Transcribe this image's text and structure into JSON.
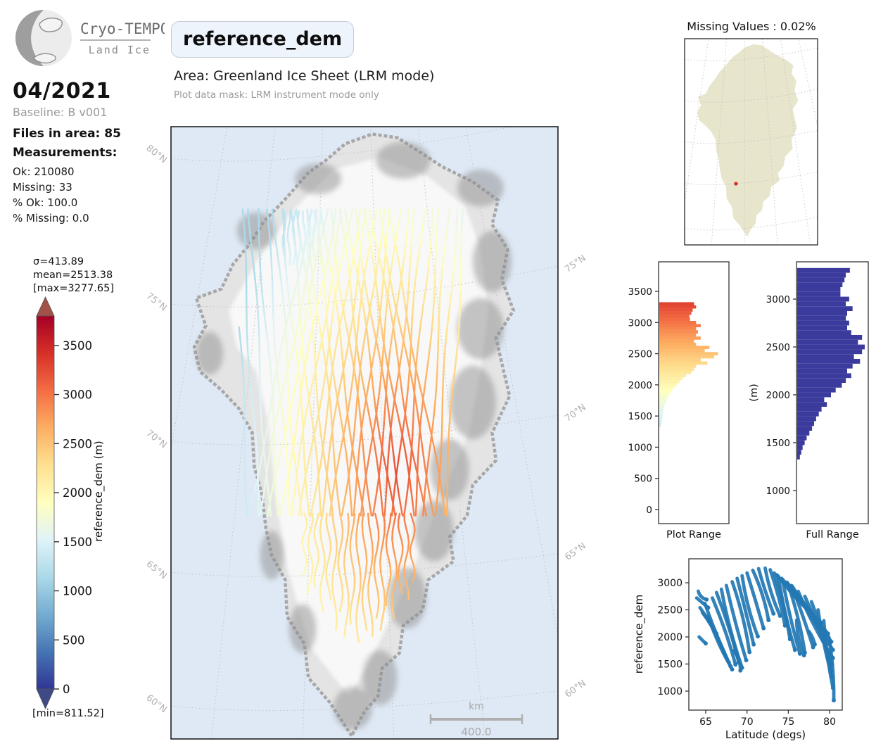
{
  "branding": {
    "logo_title": "Cryo-TEMPO",
    "logo_subtitle": "Land Ice"
  },
  "sidebar": {
    "date": "04/2021",
    "baseline": "Baseline: B v001",
    "files": "Files in area: 85",
    "measurements_label": "Measurements:",
    "stats": [
      "Ok: 210080",
      "Missing: 33",
      "% Ok: 100.0",
      "% Missing: 0.0"
    ]
  },
  "header": {
    "variable": "reference_dem",
    "area": "Area: Greenland Ice Sheet (LRM mode)",
    "mask": "Plot data mask: LRM instrument mode only"
  },
  "colorbar": {
    "sigma": "σ=413.89",
    "mean": "mean=2513.38",
    "max": "[max=3277.65]",
    "min": "[min=811.52]",
    "label": "reference_dem (m)",
    "ticks": [
      3500,
      3000,
      2500,
      2000,
      1500,
      1000,
      500,
      0
    ],
    "vmax": 3800,
    "over_color": "#a3524a",
    "under_color": "#3e4a85",
    "stops": [
      "#313695",
      "#4575b4",
      "#74add1",
      "#abd9e9",
      "#e0f3f8",
      "#ffffbf",
      "#fee090",
      "#fdae61",
      "#f46d43",
      "#d73027",
      "#a50026"
    ]
  },
  "inset": {
    "title": "Missing Values : 0.02%",
    "land_color": "#e7e5cb",
    "marker": {
      "u": 0.386,
      "v": 0.703,
      "color": "#d62728"
    }
  },
  "chart_data": [
    {
      "id": "track-map",
      "type": "line",
      "title": "",
      "colormap": "RdYlBu_r",
      "vmin": 0,
      "vmax": 3800,
      "units": "m",
      "ocean_color": "#dfe9f5",
      "land_color": "#e4e4e4",
      "ice_color": "#f8f8f8",
      "rock_color": "#8f8f8f",
      "lat_labels_left": [
        "80°N",
        "75°N",
        "70°N",
        "65°N",
        "60°N"
      ],
      "lat_labels_right": [
        "75°N",
        "70°N",
        "65°N",
        "60°N"
      ],
      "scalebar_unit": "km",
      "scalebar_value": "400.0",
      "coast": [
        [
          0.467,
          0.995
        ],
        [
          0.41,
          0.94
        ],
        [
          0.355,
          0.9
        ],
        [
          0.345,
          0.845
        ],
        [
          0.3,
          0.8
        ],
        [
          0.295,
          0.74
        ],
        [
          0.26,
          0.7
        ],
        [
          0.245,
          0.655
        ],
        [
          0.235,
          0.6
        ],
        [
          0.215,
          0.555
        ],
        [
          0.21,
          0.5
        ],
        [
          0.175,
          0.46
        ],
        [
          0.13,
          0.43
        ],
        [
          0.075,
          0.4
        ],
        [
          0.06,
          0.36
        ],
        [
          0.09,
          0.325
        ],
        [
          0.065,
          0.28
        ],
        [
          0.13,
          0.265
        ],
        [
          0.16,
          0.225
        ],
        [
          0.205,
          0.19
        ],
        [
          0.24,
          0.155
        ],
        [
          0.3,
          0.115
        ],
        [
          0.355,
          0.075
        ],
        [
          0.4,
          0.055
        ],
        [
          0.45,
          0.028
        ],
        [
          0.52,
          0.012
        ],
        [
          0.585,
          0.018
        ],
        [
          0.64,
          0.04
        ],
        [
          0.7,
          0.065
        ],
        [
          0.78,
          0.09
        ],
        [
          0.845,
          0.12
        ],
        [
          0.83,
          0.16
        ],
        [
          0.87,
          0.2
        ],
        [
          0.855,
          0.25
        ],
        [
          0.885,
          0.3
        ],
        [
          0.84,
          0.345
        ],
        [
          0.86,
          0.4
        ],
        [
          0.875,
          0.44
        ],
        [
          0.83,
          0.5
        ],
        [
          0.84,
          0.545
        ],
        [
          0.78,
          0.585
        ],
        [
          0.765,
          0.635
        ],
        [
          0.72,
          0.67
        ],
        [
          0.73,
          0.71
        ],
        [
          0.665,
          0.74
        ],
        [
          0.65,
          0.79
        ],
        [
          0.6,
          0.815
        ],
        [
          0.59,
          0.86
        ],
        [
          0.545,
          0.885
        ],
        [
          0.535,
          0.93
        ],
        [
          0.5,
          0.955
        ]
      ],
      "ice": [
        [
          0.46,
          0.93
        ],
        [
          0.36,
          0.85
        ],
        [
          0.3,
          0.72
        ],
        [
          0.27,
          0.6
        ],
        [
          0.25,
          0.48
        ],
        [
          0.22,
          0.4
        ],
        [
          0.17,
          0.36
        ],
        [
          0.15,
          0.3
        ],
        [
          0.22,
          0.22
        ],
        [
          0.31,
          0.14
        ],
        [
          0.42,
          0.07
        ],
        [
          0.54,
          0.05
        ],
        [
          0.66,
          0.08
        ],
        [
          0.76,
          0.13
        ],
        [
          0.8,
          0.2
        ],
        [
          0.82,
          0.3
        ],
        [
          0.8,
          0.4
        ],
        [
          0.77,
          0.5
        ],
        [
          0.7,
          0.6
        ],
        [
          0.64,
          0.7
        ],
        [
          0.57,
          0.8
        ],
        [
          0.51,
          0.88
        ]
      ],
      "blobs": [
        [
          0.8,
          0.1,
          0.06,
          0.03
        ],
        [
          0.83,
          0.22,
          0.05,
          0.05
        ],
        [
          0.8,
          0.33,
          0.06,
          0.05
        ],
        [
          0.78,
          0.45,
          0.06,
          0.06
        ],
        [
          0.72,
          0.56,
          0.05,
          0.05
        ],
        [
          0.68,
          0.66,
          0.05,
          0.05
        ],
        [
          0.61,
          0.77,
          0.05,
          0.05
        ],
        [
          0.54,
          0.9,
          0.045,
          0.045
        ],
        [
          0.6,
          0.055,
          0.07,
          0.03
        ],
        [
          0.38,
          0.085,
          0.06,
          0.025
        ],
        [
          0.22,
          0.17,
          0.05,
          0.03
        ],
        [
          0.1,
          0.37,
          0.035,
          0.035
        ],
        [
          0.26,
          0.7,
          0.03,
          0.04
        ],
        [
          0.34,
          0.82,
          0.035,
          0.04
        ],
        [
          0.47,
          0.95,
          0.05,
          0.035
        ]
      ],
      "field": {
        "cu": 0.585,
        "cv": 0.56,
        "ru": 0.55,
        "rv": 0.75,
        "peak": 3250,
        "drop": 2600,
        "floor": 1150
      },
      "tracks": {
        "asc": {
          "count": 20,
          "u0": 0.2,
          "du": 0.0268,
          "shear": 0.1,
          "squeeze": 0.22,
          "vBottom": 0.635,
          "vTop": 0.135
        },
        "desc": {
          "count": 20,
          "u0": 0.2,
          "du": 0.0268,
          "shear": -0.1,
          "squeeze": 0.22,
          "vBottom": 0.635,
          "vTop": 0.135
        },
        "tails": {
          "u0": 0.345,
          "du": 0.0155,
          "v0": 0.632,
          "len": [
            0.1,
            0.13,
            0.12,
            0.16,
            0.14,
            0.19,
            0.16,
            0.2,
            0.18,
            0.21,
            0.19,
            0.2,
            0.17,
            0.19,
            0.15,
            0.17,
            0.13,
            0.14,
            0.11
          ]
        },
        "tips": {
          "count": 8,
          "u0": 0.292,
          "du": 0.013,
          "v0": 0.138,
          "len": 0.087
        },
        "width": 2.4
      }
    },
    {
      "id": "plot-range-hist",
      "type": "bar",
      "orientation": "horizontal",
      "xlabel": "Plot Range",
      "yticks": [
        0,
        500,
        1000,
        1500,
        2000,
        2500,
        3000,
        3500
      ],
      "ylim": [
        0,
        3940
      ],
      "bin_width": 50,
      "color_mode": "colormap",
      "bin_centers": [
        1350,
        1400,
        1450,
        1500,
        1550,
        1600,
        1650,
        1700,
        1750,
        1800,
        1850,
        1900,
        1950,
        2000,
        2050,
        2100,
        2150,
        2200,
        2250,
        2300,
        2350,
        2400,
        2450,
        2500,
        2550,
        2600,
        2650,
        2700,
        2750,
        2800,
        2850,
        2900,
        2950,
        3000,
        3050,
        3100,
        3150,
        3200,
        3250,
        3300
      ],
      "rel_counts": [
        0.02,
        0.03,
        0.04,
        0.05,
        0.05,
        0.06,
        0.07,
        0.09,
        0.11,
        0.13,
        0.15,
        0.18,
        0.22,
        0.26,
        0.3,
        0.35,
        0.4,
        0.48,
        0.52,
        0.55,
        0.72,
        0.62,
        0.82,
        0.88,
        0.68,
        0.75,
        0.55,
        0.52,
        0.62,
        0.55,
        0.58,
        0.55,
        0.62,
        0.55,
        0.46,
        0.45,
        0.48,
        0.5,
        0.55,
        0.52
      ]
    },
    {
      "id": "full-range-hist",
      "type": "bar",
      "orientation": "horizontal",
      "xlabel": "Full Range",
      "ylabel": "(m)",
      "yticks": [
        1000,
        1500,
        2000,
        2500,
        3000
      ],
      "ylim": [
        690,
        3390
      ],
      "bin_width": 50,
      "color": "#3b3b9d",
      "bin_centers": [
        1350,
        1400,
        1450,
        1500,
        1550,
        1600,
        1650,
        1700,
        1750,
        1800,
        1850,
        1900,
        1950,
        2000,
        2050,
        2100,
        2150,
        2200,
        2250,
        2300,
        2350,
        2400,
        2450,
        2500,
        2550,
        2600,
        2650,
        2700,
        2750,
        2800,
        2850,
        2900,
        2950,
        3000,
        3050,
        3100,
        3150,
        3200,
        3250,
        3300
      ],
      "rel_counts": [
        0.04,
        0.06,
        0.08,
        0.11,
        0.14,
        0.18,
        0.22,
        0.25,
        0.28,
        0.32,
        0.36,
        0.44,
        0.4,
        0.5,
        0.57,
        0.66,
        0.72,
        0.8,
        0.74,
        0.82,
        0.93,
        0.84,
        0.96,
        1.0,
        0.9,
        0.96,
        0.8,
        0.74,
        0.77,
        0.72,
        0.74,
        0.82,
        0.72,
        0.77,
        0.64,
        0.64,
        0.67,
        0.7,
        0.72,
        0.78
      ]
    },
    {
      "id": "lat-scatter",
      "type": "scatter",
      "xlabel": "Latitude (degs)",
      "ylabel": "reference_dem",
      "xticks": [
        65,
        70,
        75,
        80
      ],
      "yticks": [
        1000,
        1500,
        2000,
        2500,
        3000
      ],
      "xlim": [
        62.9,
        81.6
      ],
      "ylim": [
        636,
        3442
      ],
      "color": "#2478b4",
      "strands": [
        [
          63.9,
          2720,
          65.3,
          2540
        ],
        [
          64.1,
          2845,
          65.1,
          2690
        ],
        [
          64.3,
          2540,
          66.3,
          2060
        ],
        [
          64.6,
          2450,
          67.2,
          1720
        ],
        [
          64.9,
          2620,
          67.8,
          1530
        ],
        [
          65.3,
          2380,
          68.0,
          1460
        ],
        [
          65.8,
          2720,
          68.6,
          1490
        ],
        [
          66.3,
          2820,
          69.0,
          1530
        ],
        [
          66.9,
          2880,
          69.4,
          1430
        ],
        [
          67.5,
          2950,
          69.9,
          1570
        ],
        [
          68.2,
          3020,
          70.3,
          1720
        ],
        [
          68.8,
          3080,
          70.8,
          1860
        ],
        [
          69.4,
          3130,
          71.3,
          2010
        ],
        [
          70.0,
          3180,
          72.0,
          2160
        ],
        [
          70.7,
          3230,
          72.6,
          2310
        ],
        [
          71.4,
          3260,
          73.2,
          2430
        ],
        [
          72.2,
          3270,
          74.0,
          2390
        ],
        [
          72.8,
          3240,
          74.6,
          2210
        ],
        [
          73.3,
          3180,
          75.2,
          1960
        ],
        [
          73.8,
          3120,
          75.8,
          1760
        ],
        [
          74.3,
          3060,
          76.4,
          1690
        ],
        [
          74.9,
          3000,
          77.0,
          1710
        ],
        [
          75.4,
          2950,
          78.0,
          1810
        ],
        [
          73.6,
          3150,
          79.0,
          2260
        ],
        [
          74.2,
          3080,
          79.8,
          2060
        ],
        [
          74.8,
          3010,
          80.2,
          1910
        ],
        [
          75.5,
          2930,
          80.4,
          1760
        ],
        [
          76.2,
          2840,
          80.4,
          1610
        ],
        [
          77.0,
          2750,
          80.3,
          1490
        ],
        [
          77.8,
          2650,
          80.2,
          1390
        ],
        [
          78.6,
          2500,
          80.3,
          1260
        ],
        [
          79.3,
          2300,
          80.4,
          1060
        ],
        [
          79.9,
          2000,
          80.5,
          830
        ],
        [
          77.5,
          2100,
          78.2,
          1860
        ],
        [
          76.0,
          2310,
          76.9,
          1660
        ],
        [
          67.0,
          1800,
          68.2,
          1400
        ],
        [
          68.4,
          1750,
          69.2,
          1380
        ],
        [
          64.2,
          2000,
          65.0,
          1880
        ]
      ]
    }
  ]
}
